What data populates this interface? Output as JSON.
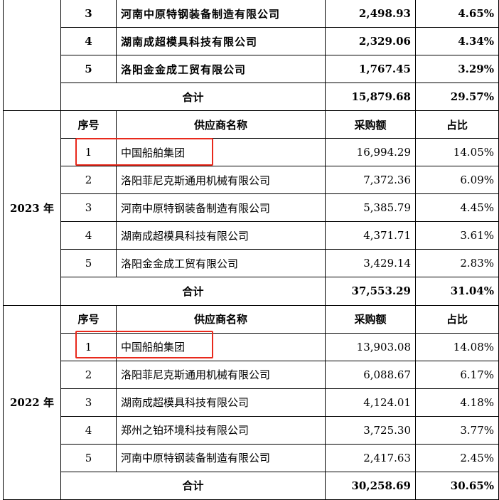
{
  "prev_section": {
    "rows": [
      {
        "no": "3",
        "name": "河南中原特钢装备制造有限公司",
        "amount": "2,498.93",
        "pct": "4.65%"
      },
      {
        "no": "4",
        "name": "湖南成超模具科技有限公司",
        "amount": "2,329.06",
        "pct": "4.34%"
      },
      {
        "no": "5",
        "name": "洛阳金金成工贸有限公司",
        "amount": "1,767.45",
        "pct": "3.29%"
      }
    ],
    "total": {
      "label": "合计",
      "amount": "15,879.68",
      "pct": "29.57%"
    }
  },
  "sections": [
    {
      "year": "2023 年",
      "header": {
        "no": "序号",
        "name": "供应商名称",
        "amount": "采购额",
        "pct": "占比"
      },
      "rows": [
        {
          "no": "1",
          "name": "中国船舶集团",
          "amount": "16,994.29",
          "pct": "14.05%"
        },
        {
          "no": "2",
          "name": "洛阳菲尼克斯通用机械有限公司",
          "amount": "7,372.36",
          "pct": "6.09%"
        },
        {
          "no": "3",
          "name": "河南中原特钢装备制造有限公司",
          "amount": "5,385.79",
          "pct": "4.45%"
        },
        {
          "no": "4",
          "name": "湖南成超模具科技有限公司",
          "amount": "4,371.71",
          "pct": "3.61%"
        },
        {
          "no": "5",
          "name": "洛阳金金成工贸有限公司",
          "amount": "3,429.14",
          "pct": "2.83%"
        }
      ],
      "total": {
        "label": "合计",
        "amount": "37,553.29",
        "pct": "31.04%"
      }
    },
    {
      "year": "2022 年",
      "header": {
        "no": "序号",
        "name": "供应商名称",
        "amount": "采购额",
        "pct": "占比"
      },
      "rows": [
        {
          "no": "1",
          "name": "中国船舶集团",
          "amount": "13,903.08",
          "pct": "14.08%"
        },
        {
          "no": "2",
          "name": "洛阳菲尼克斯通用机械有限公司",
          "amount": "6,088.67",
          "pct": "6.17%"
        },
        {
          "no": "3",
          "name": "湖南成超模具科技有限公司",
          "amount": "4,124.01",
          "pct": "4.18%"
        },
        {
          "no": "4",
          "name": "郑州之铂环境科技有限公司",
          "amount": "3,725.30",
          "pct": "3.77%"
        },
        {
          "no": "5",
          "name": "河南中原特钢装备制造有限公司",
          "amount": "2,417.63",
          "pct": "2.45%"
        }
      ],
      "total": {
        "label": "合计",
        "amount": "30,258.69",
        "pct": "30.65%"
      }
    }
  ],
  "colors": {
    "highlight": "#e8291c",
    "border": "#000000"
  }
}
